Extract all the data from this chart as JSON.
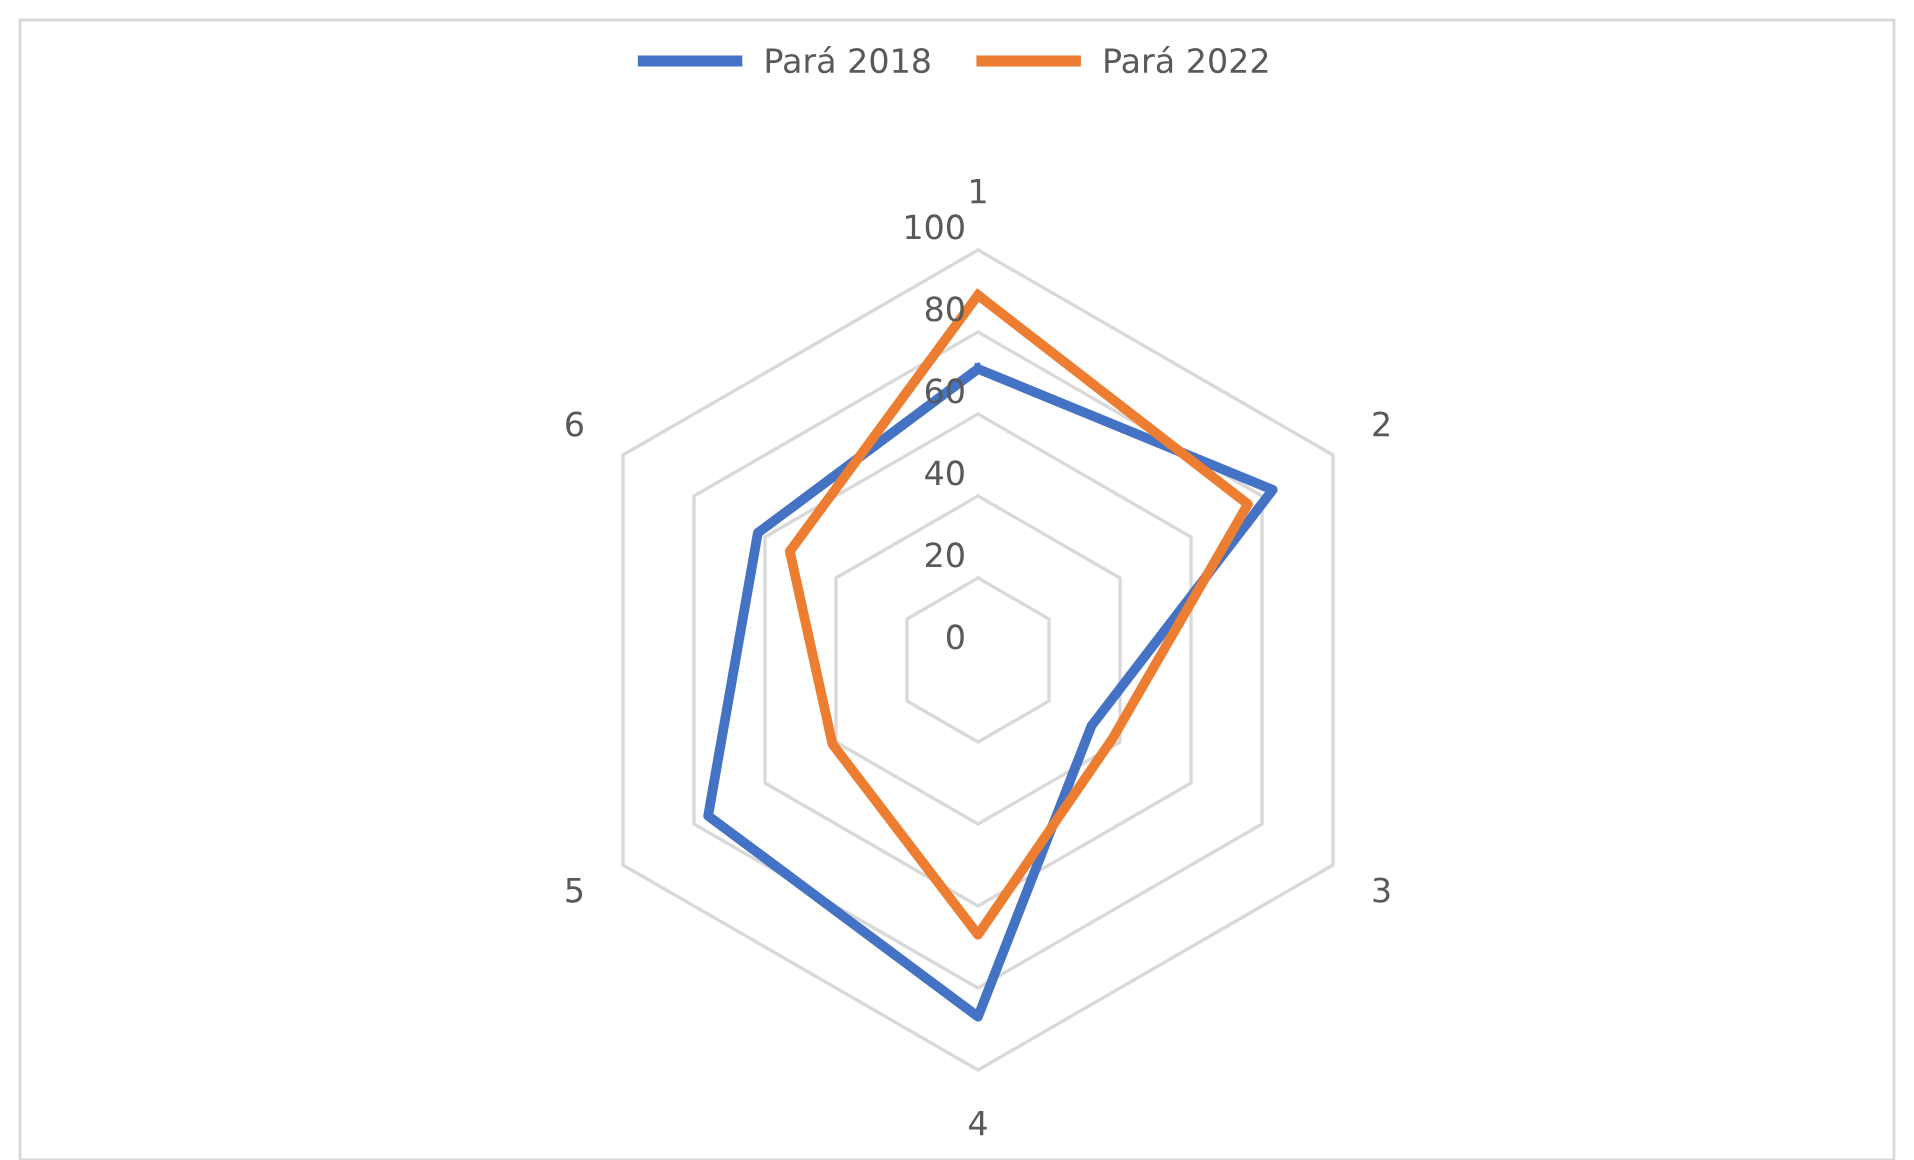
{
  "chart_data": {
    "type": "radar",
    "categories": [
      "1",
      "2",
      "3",
      "4",
      "5",
      "6"
    ],
    "series": [
      {
        "name": "Pará 2018",
        "color": "#4472c4",
        "values": [
          71,
          83,
          32,
          87,
          76,
          62
        ]
      },
      {
        "name": "Pará 2022",
        "color": "#ed7d31",
        "values": [
          89,
          76,
          38,
          67,
          41,
          53
        ]
      }
    ],
    "ylim": [
      0,
      100
    ],
    "yticks": [
      0,
      20,
      40,
      60,
      80,
      100
    ],
    "grid": true,
    "legend": "top",
    "marker": "none",
    "line_style": "solid"
  }
}
